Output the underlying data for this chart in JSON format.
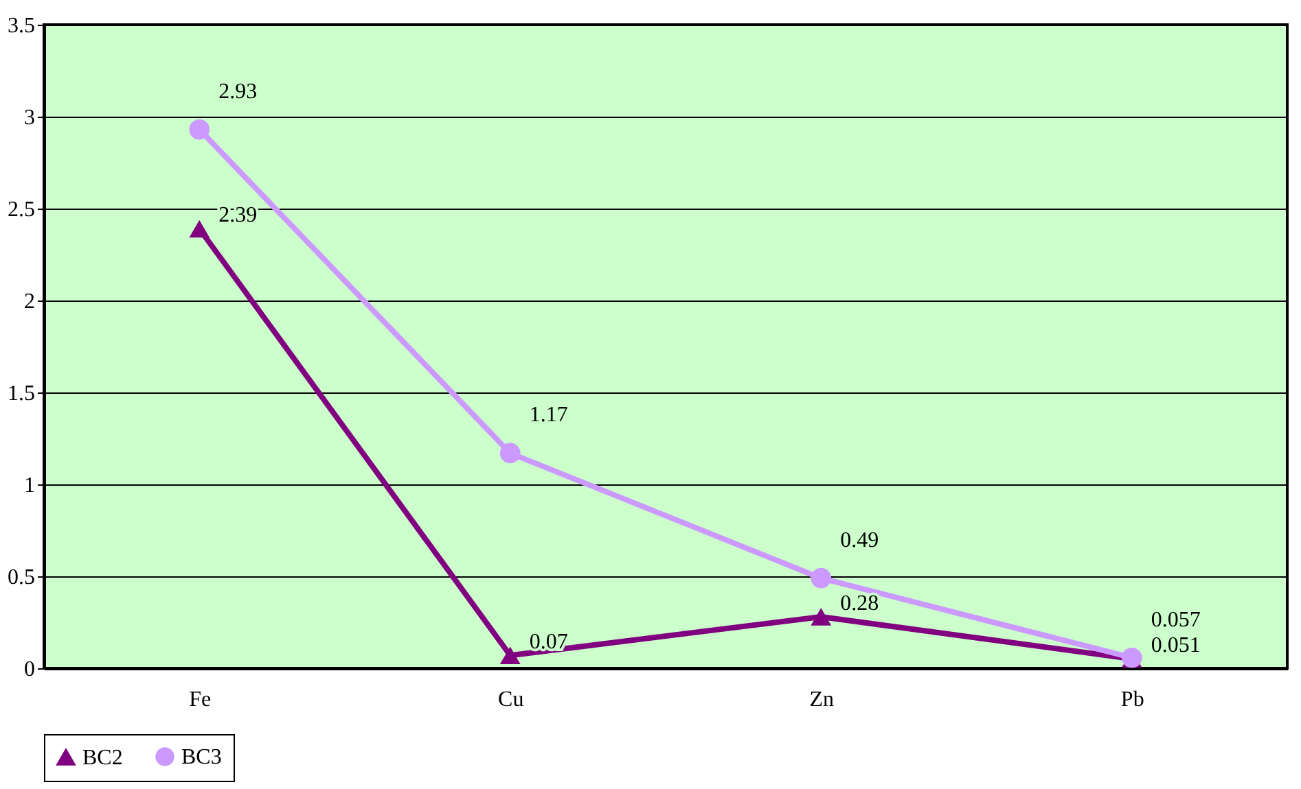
{
  "chart_data": {
    "type": "line",
    "categories": [
      "Fe",
      "Cu",
      "Zn",
      "Pb"
    ],
    "series": [
      {
        "name": "BC2",
        "color": "#800080",
        "marker": "triangle",
        "values": [
          2.39,
          0.07,
          0.28,
          0.051
        ]
      },
      {
        "name": "BC3",
        "color": "#cc99ff",
        "marker": "circle",
        "values": [
          2.93,
          1.17,
          0.49,
          0.057
        ]
      }
    ],
    "ylim": [
      0,
      3.5
    ],
    "yticks": [
      0,
      0.5,
      1,
      1.5,
      2,
      2.5,
      3,
      3.5
    ],
    "grid": "y",
    "legend": "bottom",
    "data_labels": true,
    "line_style": "solid"
  }
}
